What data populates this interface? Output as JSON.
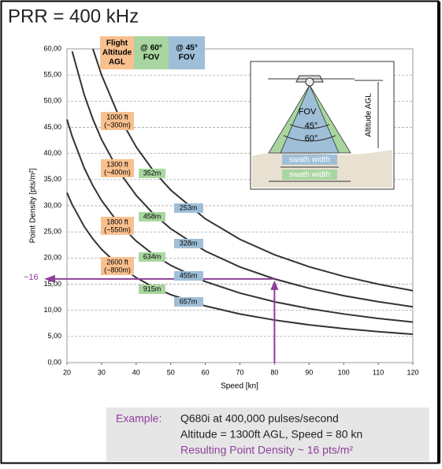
{
  "chart_data": {
    "type": "line",
    "title": "PRR = 400 kHz",
    "x_label": "Speed [kn]",
    "y_label": "Point Density [pts/m²]",
    "x": [
      20,
      21.5,
      25,
      27.5,
      30,
      35,
      40,
      45,
      50,
      60,
      70,
      80,
      90,
      100,
      110,
      120
    ],
    "series": [
      {
        "name": "1000 ft",
        "color": "#333333",
        "values": [
          null,
          null,
          null,
          60,
          55,
          47.14,
          41.25,
          36.67,
          33,
          27.5,
          23.57,
          20.63,
          18.33,
          16.5,
          15,
          13.75
        ]
      },
      {
        "name": "1300 ft",
        "color": "#333333",
        "values": [
          null,
          59.53,
          51.2,
          46.55,
          42.67,
          36.57,
          32,
          28.44,
          25.6,
          21.33,
          18.29,
          16,
          14.22,
          12.8,
          11.64,
          10.67
        ]
      },
      {
        "name": "1800 ft",
        "color": "#333333",
        "values": [
          46.5,
          43.26,
          37.2,
          33.82,
          31,
          26.57,
          23.25,
          20.67,
          18.6,
          15.5,
          13.29,
          11.63,
          10.33,
          9.3,
          8.45,
          7.75
        ]
      },
      {
        "name": "2600 ft",
        "color": "#333333",
        "values": [
          32.5,
          30.23,
          26,
          23.64,
          21.67,
          18.57,
          16.25,
          14.44,
          13,
          10.83,
          9.29,
          8.13,
          7.22,
          6.5,
          5.91,
          5.42
        ]
      }
    ],
    "xlim": [
      20,
      120
    ],
    "ylim": [
      0,
      60
    ],
    "xticks": [
      20,
      30,
      40,
      50,
      60,
      70,
      80,
      90,
      100,
      110,
      120
    ],
    "yticks": [
      {
        "value": 0,
        "label": "0,00"
      },
      {
        "value": 5,
        "label": "5,00"
      },
      {
        "value": 10,
        "label": "10,00"
      },
      {
        "value": 15,
        "label": "15,00"
      },
      {
        "value": 20,
        "label": "20,00"
      },
      {
        "value": 25,
        "label": "25,00"
      },
      {
        "value": 30,
        "label": "30,00"
      },
      {
        "value": 35,
        "label": "35,00"
      },
      {
        "value": 40,
        "label": "40,00"
      },
      {
        "value": 45,
        "label": "45,00"
      },
      {
        "value": 50,
        "label": "50,00"
      },
      {
        "value": 55,
        "label": "55,00"
      },
      {
        "value": 60,
        "label": "60,00"
      }
    ],
    "grid": true,
    "table_header": [
      {
        "lines": [
          "Flight",
          "Altitude",
          "AGL"
        ],
        "color": "#f9c08f"
      },
      {
        "lines": [
          "@ 60°",
          "FOV"
        ],
        "color": "#a9d6a0"
      },
      {
        "lines": [
          "@ 45°",
          "FOV"
        ],
        "color": "#9fbfd8"
      }
    ],
    "altitude_labels": [
      [
        "1000 ft",
        "(~300m)"
      ],
      [
        "1300 ft",
        "(~400m)"
      ],
      [
        "1800 ft",
        "(~550m)"
      ],
      [
        "2600 ft",
        "(~800m)"
      ]
    ],
    "swath_60": [
      "352m",
      "458m",
      "634m",
      "915m"
    ],
    "swath_45": [
      "253m",
      "328m",
      "455m",
      "657m"
    ],
    "highlight": {
      "x": 80,
      "y": 16,
      "label": "~16",
      "color": "#8e3f9a"
    },
    "inset": {
      "fov": "FOV",
      "angle_45": "45°",
      "angle_60": "60°",
      "altitude": "Altitude AGL",
      "swath_45": "swath width",
      "swath_60": "swath width"
    },
    "example": {
      "label": "Example:",
      "line1": "Q680i at 400,000 pulses/second",
      "line2": "Altitude = 1300ft AGL, Speed = 80 kn",
      "line3": "Resulting Point Density ~ 16 pts/m²"
    }
  }
}
